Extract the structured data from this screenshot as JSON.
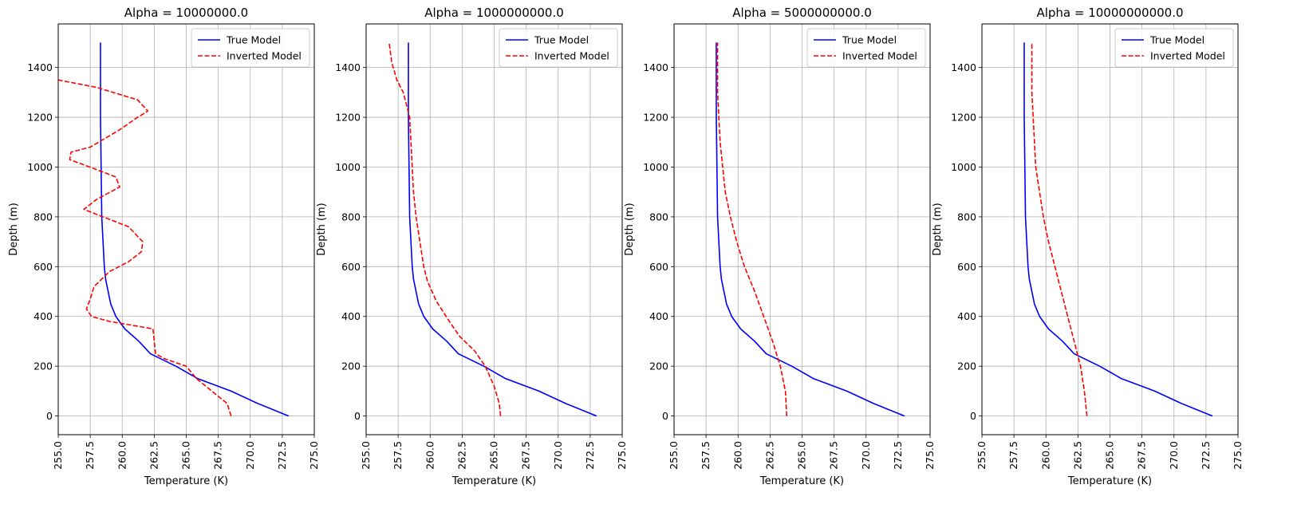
{
  "chart_data": [
    {
      "type": "line",
      "title": "Alpha = 10000000.0",
      "xlabel": "Temperature (K)",
      "ylabel": "Depth (m)",
      "xlim": [
        255,
        275
      ],
      "ylim": [
        -75,
        1575
      ],
      "xticks": [
        "255.0",
        "257.5",
        "260.0",
        "262.5",
        "265.0",
        "267.5",
        "270.0",
        "272.5",
        "275.0"
      ],
      "yticks": [
        "0",
        "200",
        "400",
        "600",
        "800",
        "1000",
        "1200",
        "1400"
      ],
      "grid": true,
      "legend": "top-right",
      "series": [
        {
          "name": "True Model",
          "color": "#0000ff",
          "style": "solid",
          "points": [
            [
              273.0,
              0
            ],
            [
              270.6,
              50
            ],
            [
              268.5,
              100
            ],
            [
              265.9,
              150
            ],
            [
              264.2,
              200
            ],
            [
              262.2,
              250
            ],
            [
              261.3,
              300
            ],
            [
              260.2,
              350
            ],
            [
              259.5,
              400
            ],
            [
              259.1,
              450
            ],
            [
              258.9,
              500
            ],
            [
              258.7,
              550
            ],
            [
              258.6,
              600
            ],
            [
              258.5,
              700
            ],
            [
              258.4,
              800
            ],
            [
              258.35,
              1000
            ],
            [
              258.3,
              1200
            ],
            [
              258.3,
              1400
            ],
            [
              258.3,
              1500
            ]
          ]
        },
        {
          "name": "Inverted Model",
          "color": "#ff0000",
          "style": "dashed",
          "points": [
            [
              268.5,
              0
            ],
            [
              268.2,
              50
            ],
            [
              267.0,
              100
            ],
            [
              265.8,
              150
            ],
            [
              265.0,
              200
            ],
            [
              263.3,
              230
            ],
            [
              262.6,
              250
            ],
            [
              262.5,
              300
            ],
            [
              262.4,
              350
            ],
            [
              259.0,
              380
            ],
            [
              257.6,
              400
            ],
            [
              257.2,
              430
            ],
            [
              257.5,
              470
            ],
            [
              257.8,
              520
            ],
            [
              259.0,
              580
            ],
            [
              260.5,
              620
            ],
            [
              261.5,
              660
            ],
            [
              261.6,
              700
            ],
            [
              260.5,
              760
            ],
            [
              259.0,
              790
            ],
            [
              257.0,
              830
            ],
            [
              258.0,
              870
            ],
            [
              259.8,
              920
            ],
            [
              259.5,
              960
            ],
            [
              258.0,
              990
            ],
            [
              255.9,
              1030
            ],
            [
              256.0,
              1060
            ],
            [
              257.5,
              1080
            ],
            [
              259.8,
              1150
            ],
            [
              261.2,
              1200
            ],
            [
              262.0,
              1225
            ],
            [
              261.2,
              1270
            ],
            [
              258.0,
              1320
            ],
            [
              255.0,
              1350
            ]
          ]
        }
      ]
    },
    {
      "type": "line",
      "title": "Alpha = 1000000000.0",
      "xlabel": "Temperature (K)",
      "ylabel": "Depth (m)",
      "xlim": [
        255,
        275
      ],
      "ylim": [
        -75,
        1575
      ],
      "xticks": [
        "255.0",
        "257.5",
        "260.0",
        "262.5",
        "265.0",
        "267.5",
        "270.0",
        "272.5",
        "275.0"
      ],
      "yticks": [
        "0",
        "200",
        "400",
        "600",
        "800",
        "1000",
        "1200",
        "1400"
      ],
      "grid": true,
      "legend": "top-right",
      "series": [
        {
          "name": "True Model",
          "color": "#0000ff",
          "style": "solid",
          "points": [
            [
              273.0,
              0
            ],
            [
              270.6,
              50
            ],
            [
              268.5,
              100
            ],
            [
              265.9,
              150
            ],
            [
              264.2,
              200
            ],
            [
              262.2,
              250
            ],
            [
              261.3,
              300
            ],
            [
              260.2,
              350
            ],
            [
              259.5,
              400
            ],
            [
              259.1,
              450
            ],
            [
              258.9,
              500
            ],
            [
              258.7,
              550
            ],
            [
              258.6,
              600
            ],
            [
              258.5,
              700
            ],
            [
              258.4,
              800
            ],
            [
              258.35,
              1000
            ],
            [
              258.3,
              1200
            ],
            [
              258.3,
              1400
            ],
            [
              258.3,
              1500
            ]
          ]
        },
        {
          "name": "Inverted Model",
          "color": "#ff0000",
          "style": "dashed",
          "points": [
            [
              265.5,
              0
            ],
            [
              265.4,
              50
            ],
            [
              265.0,
              120
            ],
            [
              264.3,
              200
            ],
            [
              263.5,
              260
            ],
            [
              262.3,
              320
            ],
            [
              261.5,
              380
            ],
            [
              260.5,
              460
            ],
            [
              259.8,
              540
            ],
            [
              259.5,
              600
            ],
            [
              259.2,
              700
            ],
            [
              258.9,
              800
            ],
            [
              258.7,
              900
            ],
            [
              258.6,
              1000
            ],
            [
              258.5,
              1100
            ],
            [
              258.4,
              1200
            ],
            [
              257.9,
              1300
            ],
            [
              257.4,
              1350
            ],
            [
              257.0,
              1420
            ],
            [
              256.8,
              1500
            ]
          ]
        }
      ]
    },
    {
      "type": "line",
      "title": "Alpha = 5000000000.0",
      "xlabel": "Temperature (K)",
      "ylabel": "Depth (m)",
      "xlim": [
        255,
        275
      ],
      "ylim": [
        -75,
        1575
      ],
      "xticks": [
        "255.0",
        "257.5",
        "260.0",
        "262.5",
        "265.0",
        "267.5",
        "270.0",
        "272.5",
        "275.0"
      ],
      "yticks": [
        "0",
        "200",
        "400",
        "600",
        "800",
        "1000",
        "1200",
        "1400"
      ],
      "grid": true,
      "legend": "top-right",
      "series": [
        {
          "name": "True Model",
          "color": "#0000ff",
          "style": "solid",
          "points": [
            [
              273.0,
              0
            ],
            [
              270.6,
              50
            ],
            [
              268.5,
              100
            ],
            [
              265.9,
              150
            ],
            [
              264.2,
              200
            ],
            [
              262.2,
              250
            ],
            [
              261.3,
              300
            ],
            [
              260.2,
              350
            ],
            [
              259.5,
              400
            ],
            [
              259.1,
              450
            ],
            [
              258.9,
              500
            ],
            [
              258.7,
              550
            ],
            [
              258.6,
              600
            ],
            [
              258.5,
              700
            ],
            [
              258.4,
              800
            ],
            [
              258.35,
              1000
            ],
            [
              258.3,
              1200
            ],
            [
              258.3,
              1400
            ],
            [
              258.3,
              1500
            ]
          ]
        },
        {
          "name": "Inverted Model",
          "color": "#ff0000",
          "style": "dashed",
          "points": [
            [
              263.8,
              0
            ],
            [
              263.7,
              100
            ],
            [
              263.3,
              200
            ],
            [
              262.7,
              300
            ],
            [
              262.0,
              400
            ],
            [
              261.3,
              500
            ],
            [
              260.5,
              600
            ],
            [
              259.9,
              700
            ],
            [
              259.4,
              800
            ],
            [
              259.0,
              900
            ],
            [
              258.8,
              1000
            ],
            [
              258.6,
              1100
            ],
            [
              258.5,
              1200
            ],
            [
              258.4,
              1300
            ],
            [
              258.4,
              1400
            ],
            [
              258.4,
              1500
            ]
          ]
        }
      ]
    },
    {
      "type": "line",
      "title": "Alpha = 10000000000.0",
      "xlabel": "Temperature (K)",
      "ylabel": "Depth (m)",
      "xlim": [
        255,
        275
      ],
      "ylim": [
        -75,
        1575
      ],
      "xticks": [
        "255.0",
        "257.5",
        "260.0",
        "262.5",
        "265.0",
        "267.5",
        "270.0",
        "272.5",
        "275.0"
      ],
      "yticks": [
        "0",
        "200",
        "400",
        "600",
        "800",
        "1000",
        "1200",
        "1400"
      ],
      "grid": true,
      "legend": "top-right",
      "series": [
        {
          "name": "True Model",
          "color": "#0000ff",
          "style": "solid",
          "points": [
            [
              273.0,
              0
            ],
            [
              270.6,
              50
            ],
            [
              268.5,
              100
            ],
            [
              265.9,
              150
            ],
            [
              264.2,
              200
            ],
            [
              262.2,
              250
            ],
            [
              261.3,
              300
            ],
            [
              260.2,
              350
            ],
            [
              259.5,
              400
            ],
            [
              259.1,
              450
            ],
            [
              258.9,
              500
            ],
            [
              258.7,
              550
            ],
            [
              258.6,
              600
            ],
            [
              258.5,
              700
            ],
            [
              258.4,
              800
            ],
            [
              258.35,
              1000
            ],
            [
              258.3,
              1200
            ],
            [
              258.3,
              1400
            ],
            [
              258.3,
              1500
            ]
          ]
        },
        {
          "name": "Inverted Model",
          "color": "#ff0000",
          "style": "dashed",
          "points": [
            [
              263.2,
              0
            ],
            [
              263.0,
              100
            ],
            [
              262.7,
              200
            ],
            [
              262.2,
              300
            ],
            [
              261.7,
              400
            ],
            [
              261.2,
              500
            ],
            [
              260.7,
              600
            ],
            [
              260.2,
              700
            ],
            [
              259.8,
              800
            ],
            [
              259.5,
              900
            ],
            [
              259.2,
              1000
            ],
            [
              259.1,
              1100
            ],
            [
              259.0,
              1200
            ],
            [
              258.9,
              1300
            ],
            [
              258.9,
              1400
            ],
            [
              258.9,
              1500
            ]
          ]
        }
      ]
    }
  ]
}
